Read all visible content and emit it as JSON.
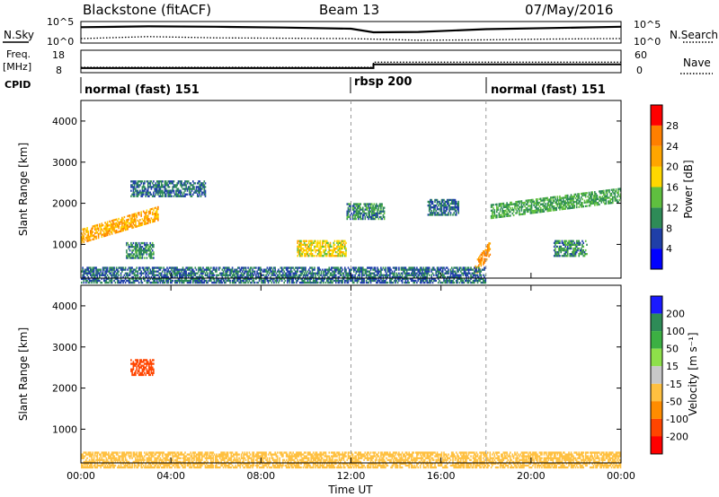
{
  "header": {
    "radar": "Blackstone (fitACF)",
    "beam": "Beam 13",
    "date": "07/May/2016"
  },
  "noise_panel": {
    "left_label": "N.Sky",
    "right_label": "N.Search",
    "ticks_left": [
      "10^5",
      "10^0"
    ],
    "ticks_right": [
      "10^5",
      "10^0"
    ]
  },
  "freq_panel": {
    "left_label_1": "Freq.",
    "left_label_2": "[MHz]",
    "right_label": "Nave",
    "ticks_left": [
      "18",
      "8"
    ],
    "ticks_right": [
      "60",
      "0"
    ]
  },
  "cpid": {
    "label": "CPID",
    "segments": [
      {
        "text": "normal (fast) 151",
        "start_hour": 0
      },
      {
        "text": "rbsp 200",
        "start_hour": 12
      },
      {
        "text": "normal (fast) 151",
        "start_hour": 18
      }
    ]
  },
  "time_axis": {
    "tick_labels": [
      "00:00",
      "04:00",
      "08:00",
      "12:00",
      "16:00",
      "20:00",
      "00:00"
    ],
    "label": "Time UT"
  },
  "range_axis": {
    "label": "Slant Range [km]",
    "tick_labels": [
      "1000",
      "2000",
      "3000",
      "4000"
    ]
  },
  "power_colorbar": {
    "label": "Power [dB]",
    "tick_labels": [
      "4",
      "8",
      "12",
      "16",
      "20",
      "24",
      "28"
    ],
    "colors": [
      "#0000ff",
      "#1f3fa8",
      "#2e8b57",
      "#5fbf3f",
      "#ffd700",
      "#ffa500",
      "#ff7f00",
      "#ff0000"
    ]
  },
  "velocity_colorbar": {
    "label": "Velocity [m s⁻¹]",
    "tick_labels": [
      "200",
      "100",
      "50",
      "15",
      "-15",
      "-50",
      "-100",
      "-200"
    ],
    "colors": [
      "#1a1aff",
      "#2e8b57",
      "#3cb043",
      "#8ee04a",
      "#c8c8c8",
      "#ffc040",
      "#ff8c00",
      "#ff4500",
      "#ff0000"
    ]
  },
  "chart_data": [
    {
      "type": "heatmap",
      "title": "Power",
      "x_range_hours": [
        0,
        24
      ],
      "y_range_km": [
        180,
        4500
      ],
      "value_label": "Power [dB]",
      "color_range": [
        0,
        32
      ],
      "features": [
        {
          "name": "evening band",
          "hours": [
            0,
            3.4
          ],
          "range_km_start": 1200,
          "range_km_end": 1750,
          "power_db": 22
        },
        {
          "name": "upper echoes",
          "hours": [
            2.2,
            5.5
          ],
          "range_km_center": 2350,
          "power_db": 8
        },
        {
          "name": "low patch",
          "hours": [
            2.0,
            3.2
          ],
          "range_km_center": 850,
          "power_db": 10
        },
        {
          "name": "midday patch",
          "hours": [
            9.6,
            11.8
          ],
          "range_km_center": 900,
          "power_db": 18
        },
        {
          "name": "12-14 UT band",
          "hours": [
            11.8,
            13.5
          ],
          "range_km_center": 1800,
          "power_db": 10
        },
        {
          "name": "16-17 UT band",
          "hours": [
            15.4,
            16.8
          ],
          "range_km_center": 1900,
          "power_db": 8
        },
        {
          "name": "18 UT rise",
          "hours": [
            17.5,
            18.2
          ],
          "range_km_start": 400,
          "range_km_end": 950,
          "power_db": 24
        },
        {
          "name": "evening band 2",
          "hours": [
            18.2,
            24
          ],
          "range_km_start": 1800,
          "range_km_end": 2200,
          "power_db": 12
        },
        {
          "name": "late patch",
          "hours": [
            21,
            22.5
          ],
          "range_km_center": 900,
          "power_db": 10
        },
        {
          "name": "near-range ground echoes",
          "hours": [
            0,
            18
          ],
          "range_km_center": 250,
          "power_db": 8
        }
      ]
    },
    {
      "type": "heatmap",
      "title": "Velocity",
      "x_range_hours": [
        0,
        24
      ],
      "y_range_km": [
        180,
        4500
      ],
      "value_label": "Velocity [m s⁻¹]",
      "color_range": [
        -250,
        250
      ],
      "features": [
        {
          "name": "evening band (ground scatter)",
          "hours": [
            0,
            3.4
          ],
          "velocity_ms": 0
        },
        {
          "name": "upper echoes",
          "hours": [
            2.2,
            3.2
          ],
          "range_km_center": 2500,
          "velocity_ms": -150
        },
        {
          "name": "near-range low velocity",
          "hours": [
            0,
            24
          ],
          "range_km_center": 250,
          "velocity_ms": -30
        },
        {
          "name": "evening band 2 (ground scatter)",
          "hours": [
            18.2,
            24
          ],
          "velocity_ms": 0
        }
      ]
    },
    {
      "type": "line",
      "title": "Noise",
      "x_range_hours": [
        0,
        24
      ],
      "ylim_log10": [
        0,
        5
      ],
      "series": [
        {
          "name": "N.Sky",
          "style": "solid",
          "x": [
            0,
            3,
            6,
            9,
            12,
            13,
            15,
            18,
            21,
            24
          ],
          "log10_values": [
            3.8,
            4.0,
            3.9,
            3.7,
            3.4,
            2.5,
            2.6,
            3.3,
            3.6,
            3.9
          ]
        },
        {
          "name": "N.Search",
          "style": "dotted",
          "x": [
            0,
            3,
            6,
            9,
            12,
            15,
            18,
            21,
            24
          ],
          "log10_values": [
            0.9,
            1.4,
            1.1,
            1.0,
            0.9,
            0.5,
            0.6,
            0.8,
            0.9
          ]
        }
      ]
    },
    {
      "type": "line",
      "title": "Freq / Nave",
      "x_range_hours": [
        0,
        24
      ],
      "series": [
        {
          "name": "Freq.",
          "style": "solid",
          "x": [
            0,
            13,
            13,
            24
          ],
          "values": [
            9.8,
            9.8,
            11.6,
            11.6
          ],
          "ylim": [
            8,
            18
          ]
        },
        {
          "name": "Nave",
          "style": "dotted",
          "x": [
            0,
            13,
            13,
            24
          ],
          "values": [
            13,
            13,
            28,
            28
          ],
          "ylim": [
            0,
            60
          ]
        }
      ]
    }
  ]
}
